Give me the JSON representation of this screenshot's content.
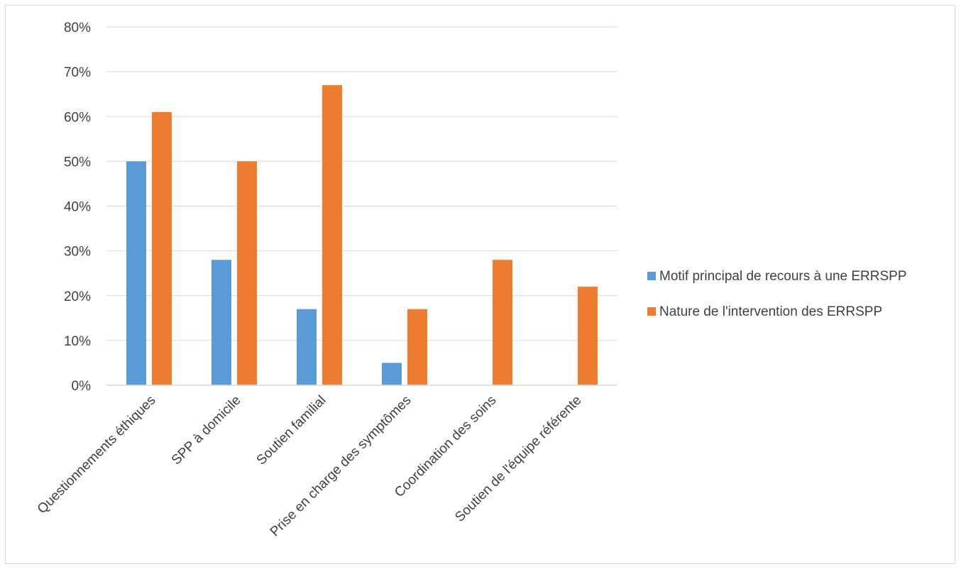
{
  "chart_data": {
    "type": "bar",
    "categories": [
      "Questionnements éthiques",
      "SPP à domicile",
      "Soutien familial",
      "Prise en charge des symptômes",
      "Coordination des soins",
      "Soutien de l'équipe référente"
    ],
    "series": [
      {
        "name": "Motif principal de recours à une ERRSPP",
        "color": "#5b9bd5",
        "values": [
          50,
          28,
          17,
          5,
          0,
          0
        ]
      },
      {
        "name": "Nature de l'intervention des ERRSPP",
        "color": "#ed7d31",
        "values": [
          61,
          50,
          67,
          17,
          28,
          22
        ]
      }
    ],
    "yticks": [
      "0%",
      "10%",
      "20%",
      "30%",
      "40%",
      "50%",
      "60%",
      "70%",
      "80%"
    ],
    "ylim": [
      0,
      80
    ],
    "ytick_step": 10,
    "grid": true,
    "legend_position": "right",
    "title": "",
    "xlabel": "",
    "ylabel": ""
  }
}
